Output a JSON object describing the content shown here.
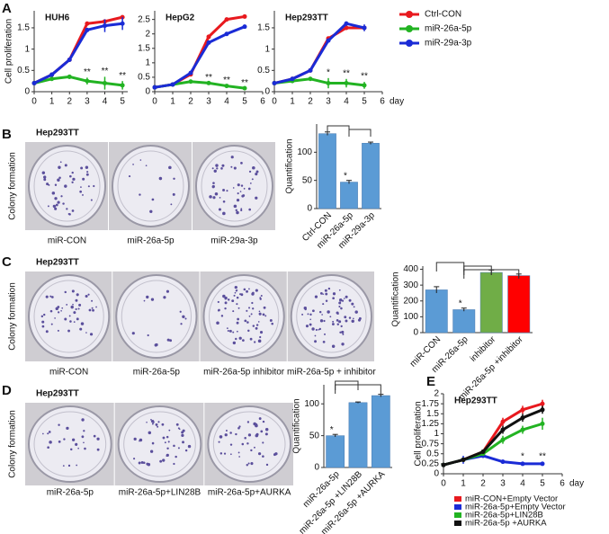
{
  "panels": [
    "A",
    "B",
    "C",
    "D",
    "E"
  ],
  "photos": [
    {
      "title": "Hep293TT",
      "ylabel": "Colony formation",
      "labels": [
        "miR-CON",
        "miR-26a-5p",
        "miR-29a-3p"
      ]
    },
    {
      "title": "Hep293TT",
      "ylabel": "Colony formation",
      "labels": [
        "miR-CON",
        "miR-26a-5p",
        "miR-26a-5p inhibitor",
        "miR-26a-5p + inhibitor"
      ]
    },
    {
      "title": "Hep293TT",
      "ylabel": "Colony formation",
      "labels": [
        "miR-26a-5p",
        "miR-26a-5p+LIN28B",
        "miR-26a-5p+AURKA"
      ]
    }
  ],
  "chart_data": [
    {
      "type": "line",
      "title": "HUH6",
      "ylabel": "Cell proliferation",
      "x": [
        0,
        1,
        2,
        3,
        4,
        5
      ],
      "xlim": [
        0,
        5.3
      ],
      "xticks": [
        0,
        1,
        2,
        3,
        4,
        5
      ],
      "ylim": [
        0,
        1.9
      ],
      "yticks": [
        0,
        0.5,
        1,
        1.5
      ],
      "series": [
        {
          "name": "Ctrl-CON",
          "color": "#e8191e",
          "values": [
            0.2,
            0.4,
            0.75,
            1.6,
            1.65,
            1.75
          ]
        },
        {
          "name": "miR-26a-5p",
          "color": "#22b322",
          "values": [
            0.2,
            0.3,
            0.35,
            0.25,
            0.2,
            0.15
          ],
          "errors": [
            0,
            0,
            0.05,
            0.08,
            0.15,
            0.1
          ]
        },
        {
          "name": "miR-29a-3p",
          "color": "#1a2bd6",
          "values": [
            0.2,
            0.4,
            0.75,
            1.45,
            1.55,
            1.6
          ],
          "errors": [
            0,
            0,
            0,
            0.05,
            0.15,
            0.15
          ]
        }
      ],
      "annotations": [
        {
          "x": 3,
          "text": "**"
        },
        {
          "x": 4,
          "text": "**"
        },
        {
          "x": 5,
          "text": "**"
        }
      ]
    },
    {
      "type": "line",
      "title": "HepG2",
      "x": [
        0,
        1,
        2,
        3,
        4,
        5
      ],
      "xlim": [
        0,
        6
      ],
      "xticks": [
        0,
        1,
        2,
        3,
        4,
        5,
        6
      ],
      "ylim": [
        0,
        2.8
      ],
      "yticks": [
        0,
        0.5,
        1,
        1.5,
        2,
        2.5
      ],
      "series": [
        {
          "color": "#e8191e",
          "values": [
            0.15,
            0.25,
            0.6,
            1.9,
            2.5,
            2.6
          ]
        },
        {
          "color": "#22b322",
          "values": [
            0.15,
            0.25,
            0.35,
            0.3,
            0.2,
            0.12
          ]
        },
        {
          "color": "#1a2bd6",
          "values": [
            0.15,
            0.25,
            0.65,
            1.7,
            2.0,
            2.25
          ],
          "errors": [
            0,
            0,
            0,
            0,
            0,
            0.06
          ]
        }
      ],
      "annotations": [
        {
          "x": 3,
          "text": "**"
        },
        {
          "x": 4,
          "text": "**"
        },
        {
          "x": 5,
          "text": "**"
        }
      ]
    },
    {
      "type": "line",
      "title": "Hep293TT",
      "xlabel": "day",
      "x": [
        0,
        1,
        2,
        3,
        4,
        5
      ],
      "xlim": [
        0,
        6
      ],
      "xticks": [
        0,
        1,
        2,
        3,
        4,
        5,
        6
      ],
      "ylim": [
        0,
        1.9
      ],
      "yticks": [
        0,
        0.5,
        1,
        1.5
      ],
      "series": [
        {
          "color": "#e8191e",
          "values": [
            0.2,
            0.3,
            0.5,
            1.25,
            1.5,
            1.5
          ]
        },
        {
          "color": "#22b322",
          "values": [
            0.2,
            0.25,
            0.3,
            0.2,
            0.2,
            0.15
          ],
          "errors": [
            0,
            0,
            0,
            0.12,
            0.1,
            0.08
          ]
        },
        {
          "color": "#1a2bd6",
          "values": [
            0.2,
            0.3,
            0.5,
            1.2,
            1.6,
            1.5
          ],
          "errors": [
            0,
            0,
            0,
            0,
            0.05,
            0.08
          ]
        }
      ],
      "annotations": [
        {
          "x": 3,
          "text": "*"
        },
        {
          "x": 4,
          "text": "**"
        },
        {
          "x": 5,
          "text": "**"
        }
      ]
    },
    {
      "type": "bar",
      "ylabel": "Quantification",
      "categories": [
        "Ctrl-CON",
        "miR-26a-5p",
        "miR-29a-3p"
      ],
      "values": [
        133,
        47,
        116
      ],
      "errors": [
        3,
        3,
        2
      ],
      "color": "#5b9bd5",
      "ylim": [
        0,
        150
      ],
      "yticks": [
        0,
        50,
        100
      ],
      "annotations": [
        {
          "x": "miR-26a-5p",
          "text": "*"
        }
      ]
    },
    {
      "type": "bar",
      "ylabel": "Quantification",
      "categories": [
        "miR-CON",
        "miR-26a-5p",
        "inhibitor",
        "miR-26a-5p +inhibitor"
      ],
      "values": [
        270,
        145,
        380,
        360
      ],
      "errors": [
        20,
        10,
        15,
        10
      ],
      "colors": [
        "#5b9bd5",
        "#5b9bd5",
        "#70ad47",
        "#ff0000"
      ],
      "ylim": [
        0,
        420
      ],
      "yticks": [
        0,
        100,
        200,
        300,
        400
      ],
      "annotations": [
        {
          "x": "miR-26a-5p",
          "text": "*"
        }
      ]
    },
    {
      "type": "bar",
      "ylabel": "Quantification",
      "categories": [
        "miR-26a-5p",
        "miR-26a-5p +LIN28B",
        "miR-26a-5p +AURKA"
      ],
      "values": [
        50,
        102,
        113
      ],
      "errors": [
        2,
        1,
        2
      ],
      "color": "#5b9bd5",
      "ylim": [
        0,
        130
      ],
      "yticks": [
        0,
        50,
        100
      ],
      "annotations": [
        {
          "x": "miR-26a-5p",
          "text": "*"
        }
      ]
    },
    {
      "type": "line",
      "title": "Hep293TT",
      "ylabel": "Cell proliferation",
      "xlabel": "day",
      "x": [
        0,
        1,
        2,
        3,
        4,
        5
      ],
      "xlim": [
        0,
        6
      ],
      "xticks": [
        0,
        1,
        2,
        3,
        4,
        5,
        6
      ],
      "ylim": [
        0,
        2
      ],
      "yticks": [
        0,
        0.25,
        0.5,
        0.75,
        1,
        1.25,
        1.5,
        1.75,
        2
      ],
      "series": [
        {
          "name": "miR-CON+Empty Vector",
          "color": "#e8191e",
          "values": [
            0.22,
            0.35,
            0.55,
            1.3,
            1.6,
            1.75
          ],
          "errors": [
            0,
            0.05,
            0.05,
            0.1,
            0.1,
            0.1
          ]
        },
        {
          "name": "miR-26a-5p+Empty Vector",
          "color": "#1a2bd6",
          "values": [
            0.22,
            0.35,
            0.45,
            0.3,
            0.25,
            0.25
          ],
          "errors": [
            0,
            0.1,
            0.05,
            0.05,
            0.05,
            0.05
          ]
        },
        {
          "name": "miR-26a-5p+LIN28B",
          "color": "#22b322",
          "values": [
            0.22,
            0.35,
            0.5,
            0.85,
            1.1,
            1.25
          ],
          "errors": [
            0,
            0.05,
            0.05,
            0.1,
            0.1,
            0.15
          ]
        },
        {
          "name": "miR-26a-5p +AURKA",
          "color": "#111111",
          "values": [
            0.22,
            0.35,
            0.55,
            1.1,
            1.4,
            1.6
          ],
          "errors": [
            0,
            0.05,
            0.05,
            0.1,
            0.1,
            0.1
          ]
        }
      ],
      "annotations": [
        {
          "x": 4,
          "text": "*"
        },
        {
          "x": 5,
          "text": "**"
        }
      ]
    }
  ]
}
